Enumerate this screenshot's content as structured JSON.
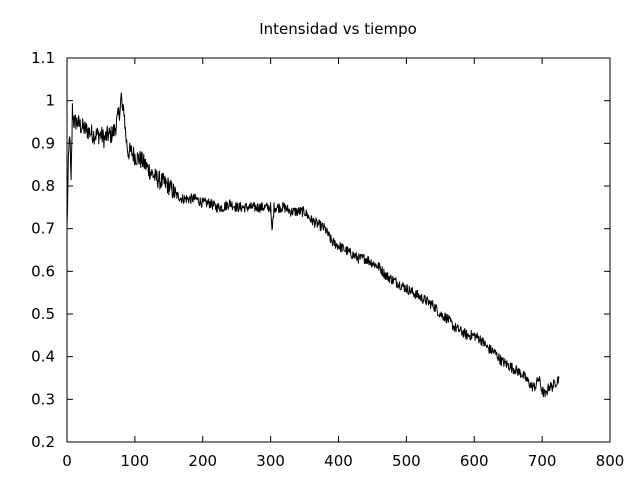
{
  "chart_data": {
    "type": "line",
    "title": "Intensidad vs tiempo",
    "xlabel": "",
    "ylabel": "",
    "xlim": [
      0,
      800
    ],
    "ylim": [
      0.2,
      1.1
    ],
    "xticks": [
      0,
      100,
      200,
      300,
      400,
      500,
      600,
      700,
      800
    ],
    "yticks": [
      0.2,
      0.3,
      0.4,
      0.5,
      0.6,
      0.7,
      0.8,
      0.9,
      1.0,
      1.1
    ],
    "ytick_labels": [
      "0.2",
      "0.3",
      "0.4",
      "0.5",
      "0.6",
      "0.7",
      "0.8",
      "0.9",
      "1",
      "1.1"
    ],
    "grid": false,
    "line_color": "#000000",
    "series": [
      {
        "x": [
          0,
          2,
          4,
          6,
          8,
          10,
          15,
          20,
          30,
          40,
          50,
          55,
          60,
          65,
          70,
          75,
          78,
          80,
          82,
          84,
          86,
          88,
          90,
          95,
          100,
          110,
          120,
          130,
          140,
          150,
          160,
          170,
          180,
          190,
          200,
          210,
          220,
          230,
          240,
          250,
          260,
          270,
          280,
          290,
          300,
          302,
          305,
          310,
          320,
          330,
          340,
          350,
          360,
          370,
          380,
          390,
          400,
          410,
          420,
          430,
          440,
          450,
          460,
          470,
          480,
          490,
          500,
          510,
          520,
          530,
          540,
          550,
          560,
          570,
          580,
          590,
          600,
          610,
          620,
          630,
          640,
          650,
          660,
          670,
          680,
          685,
          690,
          695,
          700,
          705,
          710,
          715,
          720,
          725
        ],
        "y": [
          0.7,
          0.85,
          0.93,
          0.8,
          0.98,
          0.95,
          0.95,
          0.94,
          0.93,
          0.92,
          0.92,
          0.91,
          0.92,
          0.92,
          0.93,
          0.96,
          0.98,
          1.01,
          0.97,
          0.98,
          0.93,
          0.9,
          0.88,
          0.88,
          0.87,
          0.86,
          0.84,
          0.82,
          0.81,
          0.8,
          0.78,
          0.77,
          0.77,
          0.77,
          0.76,
          0.76,
          0.75,
          0.75,
          0.76,
          0.75,
          0.75,
          0.75,
          0.75,
          0.75,
          0.75,
          0.69,
          0.75,
          0.75,
          0.75,
          0.74,
          0.74,
          0.74,
          0.72,
          0.71,
          0.7,
          0.67,
          0.66,
          0.65,
          0.64,
          0.63,
          0.63,
          0.62,
          0.61,
          0.59,
          0.58,
          0.57,
          0.56,
          0.55,
          0.54,
          0.53,
          0.52,
          0.5,
          0.49,
          0.47,
          0.46,
          0.45,
          0.45,
          0.44,
          0.42,
          0.41,
          0.39,
          0.38,
          0.37,
          0.36,
          0.34,
          0.33,
          0.33,
          0.35,
          0.32,
          0.31,
          0.33,
          0.33,
          0.34,
          0.35
        ]
      }
    ]
  }
}
